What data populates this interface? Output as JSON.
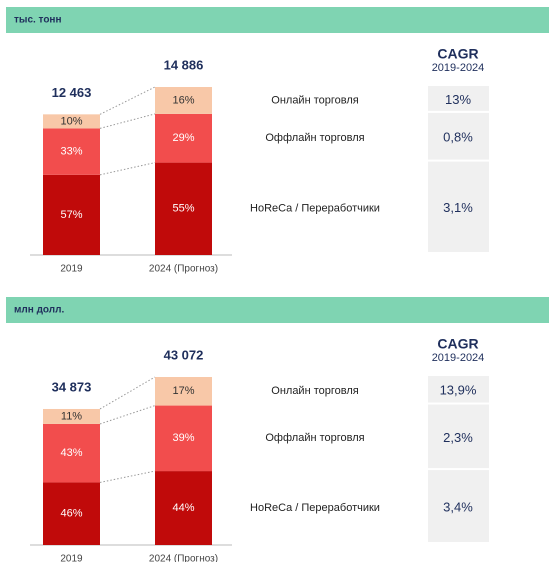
{
  "chart_data": [
    {
      "type": "bar",
      "title": "тыс. тонн",
      "categories": [
        "2019",
        "2024 (Прогноз)"
      ],
      "totals": [
        12463,
        14886
      ],
      "totals_labels": [
        "12 463",
        "14 886"
      ],
      "cagr_title": "CAGR",
      "cagr_period": "2019-2024",
      "series": [
        {
          "name": "HoReCa / Переработчики",
          "color": "#c00a0a",
          "values": [
            57,
            55
          ],
          "value_labels": [
            "57%",
            "55%"
          ],
          "cagr": 3.1,
          "cagr_label": "3,1%"
        },
        {
          "name": "Оффлайн торговля",
          "color": "#f24d4d",
          "values": [
            33,
            29
          ],
          "value_labels": [
            "33%",
            "29%"
          ],
          "cagr": 0.8,
          "cagr_label": "0,8%"
        },
        {
          "name": "Онлайн торговля",
          "color": "#f8c8a8",
          "values": [
            10,
            16
          ],
          "value_labels": [
            "10%",
            "16%"
          ],
          "cagr": 13,
          "cagr_label": "13%"
        }
      ]
    },
    {
      "type": "bar",
      "title": "млн долл.",
      "categories": [
        "2019",
        "2024 (Прогноз)"
      ],
      "totals": [
        34873,
        43072
      ],
      "totals_labels": [
        "34 873",
        "43 072"
      ],
      "cagr_title": "CAGR",
      "cagr_period": "2019-2024",
      "series": [
        {
          "name": "HoReCa / Переработчики",
          "color": "#c00a0a",
          "values": [
            46,
            44
          ],
          "value_labels": [
            "46%",
            "44%"
          ],
          "cagr": 3.4,
          "cagr_label": "3,4%"
        },
        {
          "name": "Оффлайн торговля",
          "color": "#f24d4d",
          "values": [
            43,
            39
          ],
          "value_labels": [
            "43%",
            "39%"
          ],
          "cagr": 2.3,
          "cagr_label": "2,3%"
        },
        {
          "name": "Онлайн торговля",
          "color": "#f8c8a8",
          "values": [
            11,
            17
          ],
          "value_labels": [
            "11%",
            "17%"
          ],
          "cagr": 13.9,
          "cagr_label": "13,9%"
        }
      ]
    }
  ]
}
